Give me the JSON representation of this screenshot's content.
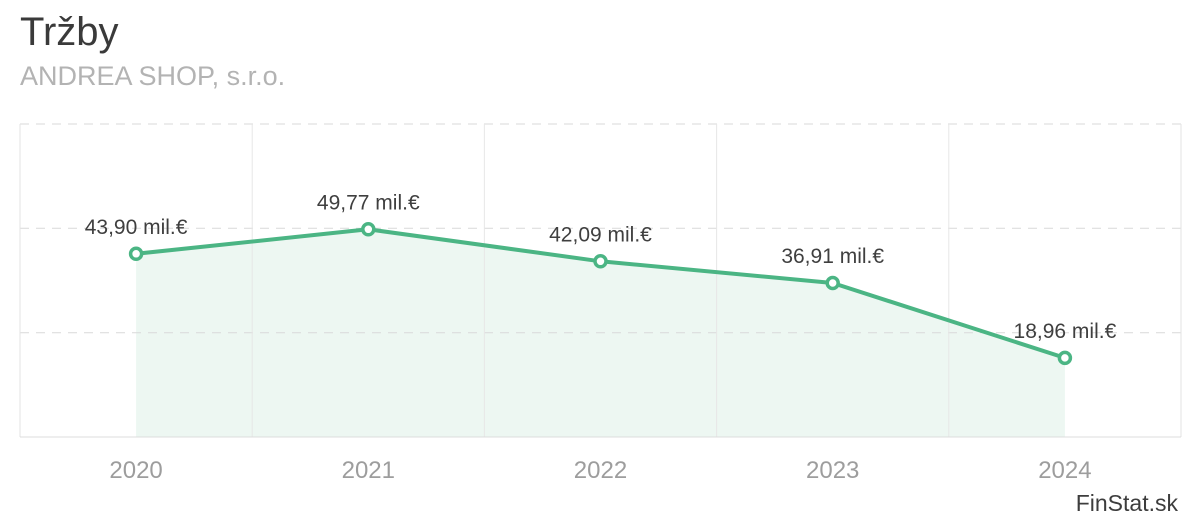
{
  "header": {
    "title": "Tržby",
    "subtitle": "ANDREA SHOP, s.r.o."
  },
  "footer": {
    "watermark": "FinStat.sk"
  },
  "chart_data": {
    "type": "line",
    "title": "Tržby",
    "subtitle": "ANDREA SHOP, s.r.o.",
    "categories": [
      "2020",
      "2021",
      "2022",
      "2023",
      "2024"
    ],
    "series": [
      {
        "name": "Tržby",
        "values": [
          43.9,
          49.77,
          42.09,
          36.91,
          18.96
        ],
        "point_labels": [
          "43,90 mil.€",
          "49,77 mil.€",
          "42,09 mil.€",
          "36,91 mil.€",
          "18,96 mil.€"
        ]
      }
    ],
    "unit": "mil.€",
    "xlabel": "",
    "ylabel": "",
    "ylim": [
      0,
      75
    ],
    "y_gridline_values": [
      25,
      50,
      75
    ],
    "grid": {
      "horizontal_style": "dashed",
      "vertical_style": "solid",
      "y_axis_labels_visible": false
    },
    "legend_position": "none",
    "area_fill": true,
    "colors": {
      "line": "#4bb584",
      "marker_fill": "#ffffff",
      "area": "#edf7f2",
      "point_label": "#3f3f3f",
      "category_label": "#9d9d9d",
      "grid_dashed": "#d9d9d9",
      "grid_solid": "#e7e7e7",
      "border": "#e3e3e3",
      "axis_line": "#dcdcdc"
    }
  }
}
